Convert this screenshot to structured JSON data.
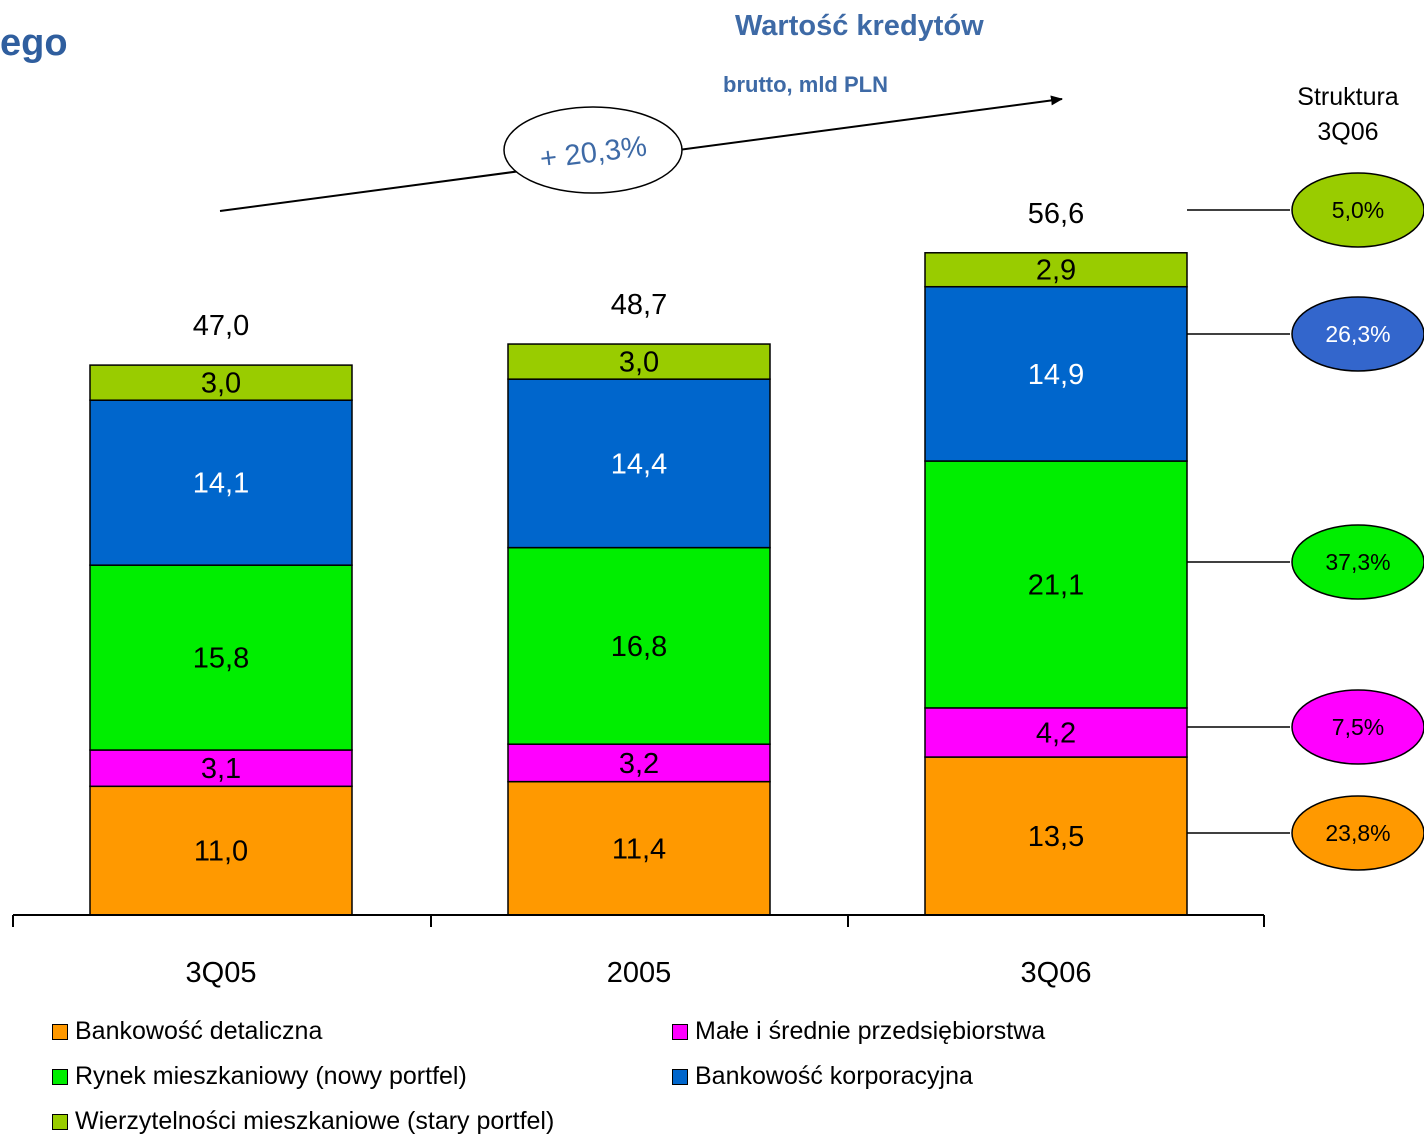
{
  "page": {
    "heading_fragment": "ego",
    "struktura_label": "Struktura 3Q06"
  },
  "chart_data": {
    "type": "bar",
    "stacked": true,
    "title": "Wartość kredytów",
    "subtitle": "brutto, mld PLN",
    "categories": [
      "3Q05",
      "2005",
      "3Q06"
    ],
    "totals": [
      "47,0",
      "48,7",
      "56,6"
    ],
    "growth_label": "+ 20,3%",
    "series": [
      {
        "name": "Bankowość detaliczna",
        "color": "#ff9900",
        "values": [
          11.0,
          11.4,
          13.5
        ],
        "labels": [
          "11,0",
          "11,4",
          "13,5"
        ],
        "label_color": "#000000"
      },
      {
        "name": "Małe i średnie przedsiębiorstwa",
        "color": "#ff00ff",
        "values": [
          3.1,
          3.2,
          4.2
        ],
        "labels": [
          "3,1",
          "3,2",
          "4,2"
        ],
        "label_color": "#000000"
      },
      {
        "name": "Rynek mieszkaniowy (nowy portfel)",
        "color": "#00ee00",
        "values": [
          15.8,
          16.8,
          21.1
        ],
        "labels": [
          "15,8",
          "16,8",
          "21,1"
        ],
        "label_color": "#000000"
      },
      {
        "name": "Bankowość korporacyjna",
        "color": "#0066cc",
        "values": [
          14.1,
          14.4,
          14.9
        ],
        "labels": [
          "14,1",
          "14,4",
          "14,9"
        ],
        "label_color": "#ffffff"
      },
      {
        "name": "Wierzytelności mieszkaniowe (stary portfel)",
        "color": "#99cc00",
        "values": [
          3.0,
          3.0,
          2.9
        ],
        "labels": [
          "3,0",
          "3,0",
          "2,9"
        ],
        "label_color": "#000000"
      }
    ],
    "structure_3Q06": [
      {
        "segment": "Bankowość detaliczna",
        "label": "23,8%",
        "color": "#ff9900",
        "text_color": "#000000"
      },
      {
        "segment": "Małe i średnie przedsiębiorstwa",
        "label": "7,5%",
        "color": "#ff00ff",
        "text_color": "#000000"
      },
      {
        "segment": "Rynek mieszkaniowy (nowy portfel)",
        "label": "37,3%",
        "color": "#00ee00",
        "text_color": "#000000"
      },
      {
        "segment": "Bankowość korporacyjna",
        "label": "26,3%",
        "color": "#3366cc",
        "text_color": "#ffffff"
      },
      {
        "segment": "Wierzytelności mieszkaniowe (stary portfel)",
        "label": "5,0%",
        "color": "#99cc00",
        "text_color": "#000000"
      }
    ],
    "legend": {
      "placement": "bottom",
      "order": [
        0,
        1,
        2,
        3,
        4
      ]
    },
    "grid": false
  }
}
